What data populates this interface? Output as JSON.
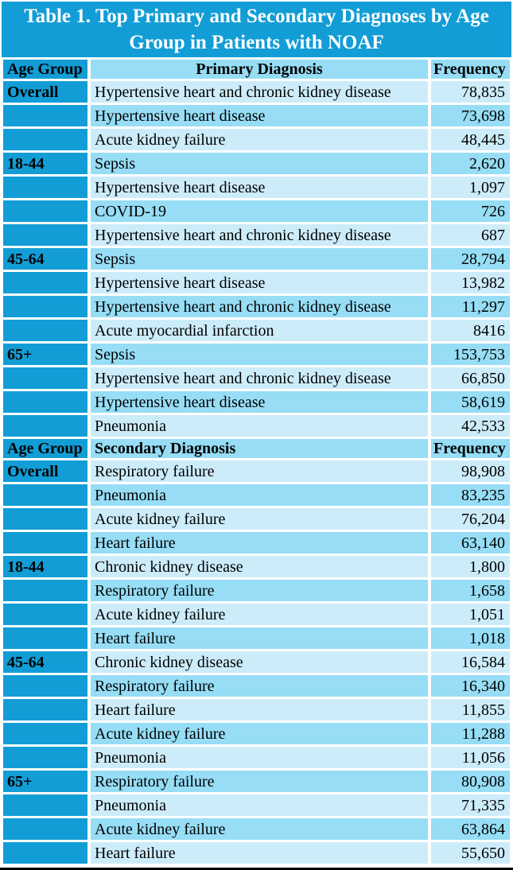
{
  "title": "Table 1. Top Primary and Secondary Diagnoses by Age Group in Patients with NOAF",
  "colors": {
    "dark_blue": "#129dd6",
    "row_medium": "#96ddf5",
    "row_light": "#cdecfa",
    "title_text": "#ffffff",
    "body_text": "#000000",
    "bottom_border": "#000000"
  },
  "chart_data": {
    "type": "table",
    "title": "Table 1. Top Primary and Secondary Diagnoses by Age Group in Patients with NOAF",
    "sections": [
      {
        "header": {
          "age_group": "Age Group",
          "diagnosis": "Primary Diagnosis",
          "frequency": "Frequency"
        },
        "diagnosis_header_align": "center",
        "rows": [
          {
            "age_group": "Overall",
            "diagnosis": "Hypertensive heart and chronic kidney disease",
            "frequency": "78,835"
          },
          {
            "age_group": "",
            "diagnosis": "Hypertensive heart disease",
            "frequency": "73,698"
          },
          {
            "age_group": "",
            "diagnosis": "Acute kidney failure",
            "frequency": "48,445"
          },
          {
            "age_group": "18-44",
            "diagnosis": "Sepsis",
            "frequency": "2,620"
          },
          {
            "age_group": "",
            "diagnosis": "Hypertensive heart disease",
            "frequency": "1,097"
          },
          {
            "age_group": "",
            "diagnosis": "COVID-19",
            "frequency": "726"
          },
          {
            "age_group": "",
            "diagnosis": "Hypertensive heart and chronic kidney disease",
            "frequency": "687"
          },
          {
            "age_group": "45-64",
            "diagnosis": "Sepsis",
            "frequency": "28,794"
          },
          {
            "age_group": "",
            "diagnosis": "Hypertensive heart disease",
            "frequency": "13,982"
          },
          {
            "age_group": "",
            "diagnosis": "Hypertensive heart and chronic kidney disease",
            "frequency": "11,297"
          },
          {
            "age_group": "",
            "diagnosis": "Acute myocardial infarction",
            "frequency": "8416"
          },
          {
            "age_group": "65+",
            "diagnosis": "Sepsis",
            "frequency": "153,753"
          },
          {
            "age_group": "",
            "diagnosis": "Hypertensive heart and chronic kidney disease",
            "frequency": "66,850"
          },
          {
            "age_group": "",
            "diagnosis": "Hypertensive heart disease",
            "frequency": "58,619"
          },
          {
            "age_group": "",
            "diagnosis": "Pneumonia",
            "frequency": "42,533"
          }
        ]
      },
      {
        "header": {
          "age_group": "Age Group",
          "diagnosis": "Secondary Diagnosis",
          "frequency": "Frequency"
        },
        "diagnosis_header_align": "left",
        "rows": [
          {
            "age_group": "Overall",
            "diagnosis": "Respiratory failure",
            "frequency": "98,908"
          },
          {
            "age_group": "",
            "diagnosis": "Pneumonia",
            "frequency": "83,235"
          },
          {
            "age_group": "",
            "diagnosis": "Acute kidney failure",
            "frequency": "76,204"
          },
          {
            "age_group": "",
            "diagnosis": "Heart failure",
            "frequency": "63,140"
          },
          {
            "age_group": "18-44",
            "diagnosis": "Chronic kidney disease",
            "frequency": "1,800"
          },
          {
            "age_group": "",
            "diagnosis": "Respiratory failure",
            "frequency": "1,658"
          },
          {
            "age_group": "",
            "diagnosis": "Acute kidney failure",
            "frequency": "1,051"
          },
          {
            "age_group": "",
            "diagnosis": "Heart failure",
            "frequency": "1,018"
          },
          {
            "age_group": "45-64",
            "diagnosis": "Chronic kidney disease",
            "frequency": "16,584"
          },
          {
            "age_group": "",
            "diagnosis": "Respiratory failure",
            "frequency": "16,340"
          },
          {
            "age_group": "",
            "diagnosis": "Heart failure",
            "frequency": "11,855"
          },
          {
            "age_group": "",
            "diagnosis": "Acute kidney failure",
            "frequency": "11,288"
          },
          {
            "age_group": "",
            "diagnosis": "Pneumonia",
            "frequency": "11,056"
          },
          {
            "age_group": "65+",
            "diagnosis": "Respiratory failure",
            "frequency": "80,908"
          },
          {
            "age_group": "",
            "diagnosis": "Pneumonia",
            "frequency": "71,335"
          },
          {
            "age_group": "",
            "diagnosis": "Acute kidney failure",
            "frequency": "63,864"
          },
          {
            "age_group": "",
            "diagnosis": "Heart failure",
            "frequency": "55,650"
          }
        ]
      }
    ]
  }
}
